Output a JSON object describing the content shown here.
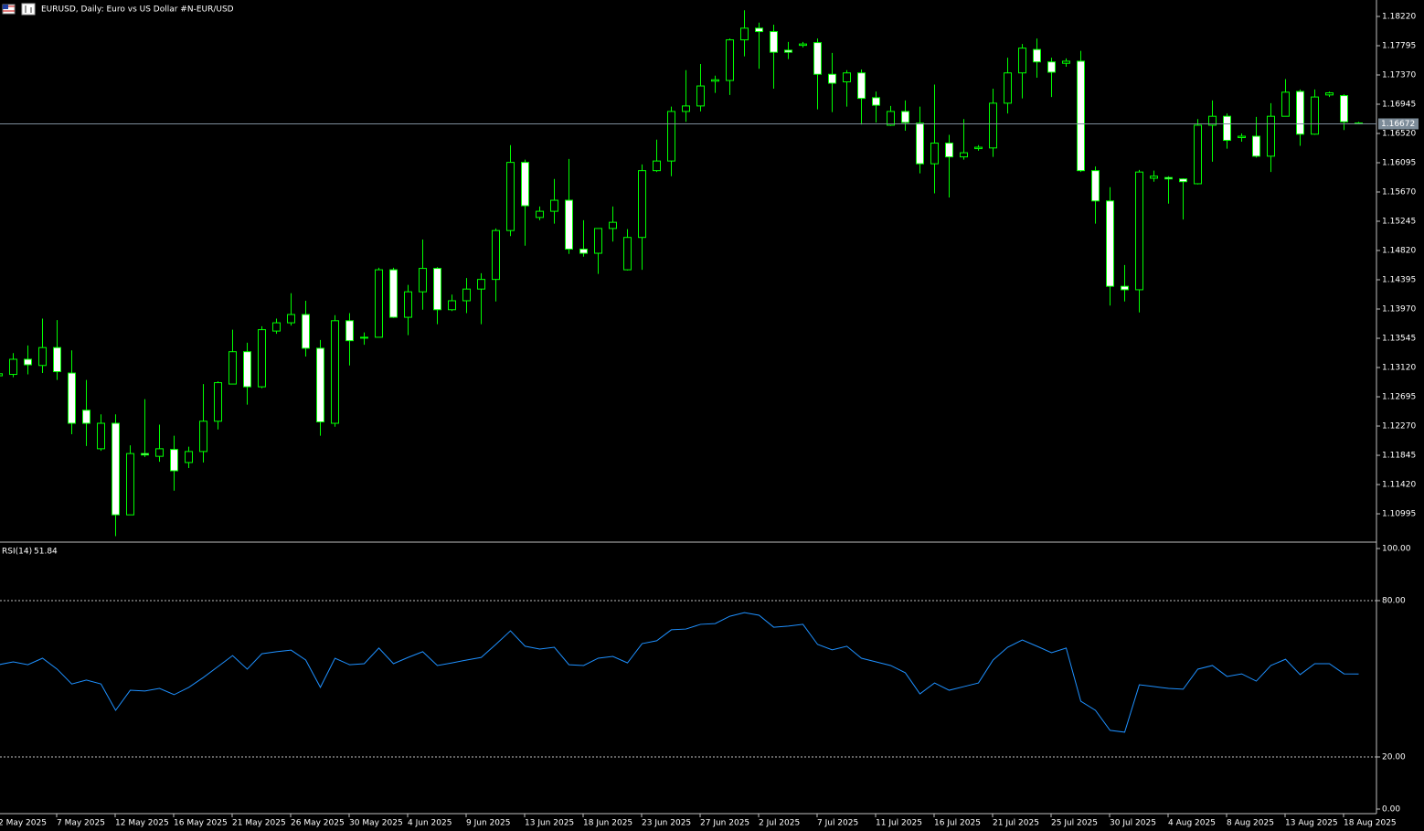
{
  "chart_data": [
    {
      "type": "candlestick",
      "title": "EURUSD, Daily:  Euro vs US Dollar #N-EUR/USD",
      "categories": [
        "2 May 2025",
        null,
        null,
        null,
        "7 May 2025",
        null,
        null,
        null,
        "12 May 2025",
        null,
        null,
        null,
        "16 May 2025",
        null,
        null,
        null,
        "21 May 2025",
        null,
        null,
        null,
        "26 May 2025",
        null,
        null,
        null,
        "30 May 2025",
        null,
        null,
        null,
        "4 Jun 2025",
        null,
        null,
        null,
        "9 Jun 2025",
        null,
        null,
        null,
        "13 Jun 2025",
        null,
        null,
        null,
        "18 Jun 2025",
        null,
        null,
        null,
        "23 Jun 2025",
        null,
        null,
        null,
        "27 Jun 2025",
        null,
        null,
        null,
        "2 Jul 2025",
        null,
        null,
        null,
        "7 Jul 2025",
        null,
        null,
        null,
        "11 Jul 2025",
        null,
        null,
        null,
        "16 Jul 2025",
        null,
        null,
        null,
        "21 Jul 2025",
        null,
        null,
        null,
        "25 Jul 2025",
        null,
        null,
        null,
        "30 Jul 2025",
        null,
        null,
        null,
        "4 Aug 2025",
        null,
        null,
        null,
        "8 Aug 2025",
        null,
        null,
        null,
        "13 Aug 2025",
        null,
        null,
        null,
        "18 Aug 2025",
        null
      ],
      "open": [
        1.13,
        1.1302,
        1.1324,
        1.1315,
        1.1341,
        1.1304,
        1.125,
        1.1194,
        1.1231,
        1.1098,
        1.1187,
        1.1183,
        1.1193,
        1.1174,
        1.119,
        1.1234,
        1.1288,
        1.1335,
        1.1284,
        1.1365,
        1.1377,
        1.1389,
        1.134,
        1.1231,
        1.138,
        1.1355,
        1.1356,
        1.1454,
        1.1385,
        1.1422,
        1.1456,
        1.1396,
        1.1409,
        1.1426,
        1.144,
        1.1511,
        1.161,
        1.153,
        1.1539,
        1.1555,
        1.1484,
        1.1478,
        1.1514,
        1.1454,
        1.1501,
        1.1598,
        1.1612,
        1.1684,
        1.1692,
        1.1728,
        1.1729,
        1.1788,
        1.1805,
        1.18,
        1.1773,
        1.178,
        1.1784,
        1.1738,
        1.1727,
        1.174,
        1.1704,
        1.1664,
        1.1684,
        1.1667,
        1.1608,
        1.1638,
        1.1618,
        1.163,
        1.1631,
        1.1696,
        1.174,
        1.1774,
        1.1756,
        1.1754,
        1.1757,
        1.1598,
        1.1554,
        1.143,
        1.1425,
        1.1587,
        1.1588,
        1.1586,
        1.1579,
        1.1664,
        1.1677,
        1.1646,
        1.1648,
        1.1619,
        1.1677,
        1.1713,
        1.1651,
        1.1708,
        1.1707,
        1.1667
      ],
      "high": [
        1.1308,
        1.1333,
        1.1344,
        1.1383,
        1.1381,
        1.1337,
        1.1294,
        1.1244,
        1.1244,
        1.1199,
        1.1266,
        1.1229,
        1.1213,
        1.1197,
        1.1288,
        1.1292,
        1.1367,
        1.1348,
        1.1372,
        1.1383,
        1.142,
        1.1409,
        1.1352,
        1.1388,
        1.1391,
        1.1363,
        1.1457,
        1.1457,
        1.1432,
        1.1498,
        1.1458,
        1.1418,
        1.1442,
        1.1449,
        1.1514,
        1.1635,
        1.1614,
        1.1546,
        1.1586,
        1.1615,
        1.1526,
        1.1514,
        1.1546,
        1.1513,
        1.1607,
        1.1643,
        1.1691,
        1.1744,
        1.1753,
        1.1736,
        1.179,
        1.1831,
        1.1813,
        1.181,
        1.1785,
        1.1785,
        1.179,
        1.1769,
        1.1744,
        1.1745,
        1.1713,
        1.1692,
        1.17,
        1.1691,
        1.1723,
        1.165,
        1.1673,
        1.1635,
        1.1717,
        1.1762,
        1.1782,
        1.179,
        1.1762,
        1.1761,
        1.1772,
        1.1604,
        1.1574,
        1.1461,
        1.1599,
        1.1598,
        1.159,
        1.1587,
        1.1673,
        1.17,
        1.1681,
        1.1652,
        1.1676,
        1.1696,
        1.1731,
        1.1716,
        1.1716,
        1.1713,
        1.1709,
        1.1669
      ],
      "low": [
        1.1298,
        1.1298,
        1.1302,
        1.1304,
        1.1294,
        1.1215,
        1.1198,
        1.1191,
        1.1067,
        1.1098,
        1.1182,
        1.1175,
        1.1133,
        1.1166,
        1.1174,
        1.1222,
        1.1288,
        1.1258,
        1.1282,
        1.1361,
        1.1373,
        1.1328,
        1.1213,
        1.1226,
        1.1315,
        1.1345,
        1.1356,
        1.1384,
        1.1359,
        1.1396,
        1.1375,
        1.1394,
        1.1391,
        1.1375,
        1.1408,
        1.1503,
        1.1489,
        1.1526,
        1.1521,
        1.1477,
        1.1473,
        1.1448,
        1.1495,
        1.1453,
        1.1454,
        1.1596,
        1.159,
        1.1669,
        1.1684,
        1.1711,
        1.1708,
        1.1764,
        1.1746,
        1.1717,
        1.176,
        1.1777,
        1.1687,
        1.1683,
        1.1691,
        1.1665,
        1.1668,
        1.1663,
        1.1656,
        1.1594,
        1.1565,
        1.1559,
        1.1614,
        1.1627,
        1.1618,
        1.1681,
        1.1703,
        1.1733,
        1.1705,
        1.1749,
        1.1596,
        1.1521,
        1.1402,
        1.1408,
        1.1392,
        1.1582,
        1.155,
        1.1527,
        1.1578,
        1.1611,
        1.163,
        1.164,
        1.1617,
        1.1596,
        1.1677,
        1.1634,
        1.165,
        1.1705,
        1.1657,
        1.1666
      ],
      "close": [
        1.1303,
        1.1324,
        1.1316,
        1.1341,
        1.1306,
        1.1231,
        1.1231,
        1.1231,
        1.1098,
        1.1187,
        1.1185,
        1.1194,
        1.1162,
        1.119,
        1.1234,
        1.129,
        1.1335,
        1.1284,
        1.1367,
        1.1377,
        1.1389,
        1.134,
        1.1233,
        1.138,
        1.1351,
        1.1356,
        1.1454,
        1.1385,
        1.1422,
        1.1456,
        1.1396,
        1.1409,
        1.1426,
        1.144,
        1.1511,
        1.161,
        1.1547,
        1.1539,
        1.1555,
        1.1484,
        1.1478,
        1.1514,
        1.1523,
        1.1501,
        1.1598,
        1.1612,
        1.1684,
        1.1692,
        1.1721,
        1.173,
        1.1788,
        1.1805,
        1.18,
        1.177,
        1.177,
        1.1782,
        1.1738,
        1.1725,
        1.174,
        1.1703,
        1.1693,
        1.1684,
        1.1668,
        1.1608,
        1.1638,
        1.1618,
        1.1624,
        1.1632,
        1.1696,
        1.174,
        1.1776,
        1.1756,
        1.1741,
        1.1757,
        1.1598,
        1.1554,
        1.143,
        1.1425,
        1.1596,
        1.159,
        1.1586,
        1.1582,
        1.1664,
        1.1677,
        1.1642,
        1.1648,
        1.1619,
        1.1677,
        1.1712,
        1.1651,
        1.1705,
        1.1711,
        1.1669,
        1.16672
      ],
      "up_color": "#000000",
      "down_color": "#ffffff",
      "line_color": "#00ff00",
      "current_price": 1.16672,
      "ylim": [
        1.10597,
        1.18459
      ],
      "yticks": [
        {
          "value": 1.1822,
          "label": "1.18220"
        },
        1.17795,
        {
          "value": 1.1737,
          "label": "1.17370"
        },
        1.16945,
        {
          "value": 1.1652,
          "label": "1.16520"
        },
        1.16095,
        {
          "value": 1.1567,
          "label": "1.15670"
        },
        1.15245,
        {
          "value": 1.1482,
          "label": "1.14820"
        },
        1.14395,
        {
          "value": 1.1397,
          "label": "1.13970"
        },
        1.13545,
        {
          "value": 1.1312,
          "label": "1.13120"
        },
        1.12695,
        {
          "value": 1.1227,
          "label": "1.12270"
        },
        1.11845,
        {
          "value": 1.1142,
          "label": "1.11420"
        },
        1.10995
      ]
    },
    {
      "type": "line",
      "series": [
        {
          "name": "RSI(14)",
          "color": "#1e90ff",
          "values": [
            55.4,
            56.5,
            55.4,
            57.9,
            53.7,
            48,
            49.5,
            48,
            37.9,
            45.6,
            45.3,
            46.3,
            43.9,
            46.7,
            50.5,
            54.7,
            58.9,
            53.7,
            59.6,
            60.4,
            61,
            57.2,
            46.7,
            57.9,
            55.4,
            55.8,
            61.8,
            55.8,
            58.2,
            60.4,
            55.1,
            56.1,
            57.2,
            58.2,
            63.2,
            68.4,
            62.5,
            61.4,
            62.1,
            55.4,
            55.1,
            57.9,
            58.6,
            56.1,
            63.5,
            64.6,
            68.8,
            69.1,
            70.9,
            71.2,
            74,
            75.4,
            74.4,
            69.8,
            70.2,
            70.9,
            63.2,
            61.1,
            62.5,
            57.9,
            56.5,
            55.1,
            52.3,
            44.2,
            48.4,
            45.6,
            47,
            48.4,
            57.2,
            62.1,
            64.9,
            62.5,
            60,
            61.8,
            41.4,
            37.9,
            30.2,
            29.5,
            47.7,
            47,
            46.3,
            46,
            53.7,
            55.1,
            50.9,
            51.9,
            49.1,
            55.1,
            57.5,
            51.6,
            55.8,
            55.8,
            51.9,
            51.84
          ]
        }
      ],
      "ylim": [
        0,
        100
      ],
      "yticks": [
        {
          "value": 100,
          "label": "100.00"
        },
        {
          "value": 80,
          "label": "80.00"
        },
        {
          "value": 20,
          "label": "20.00"
        },
        {
          "value": 0,
          "label": "0.00"
        }
      ],
      "grid": true
    }
  ]
}
